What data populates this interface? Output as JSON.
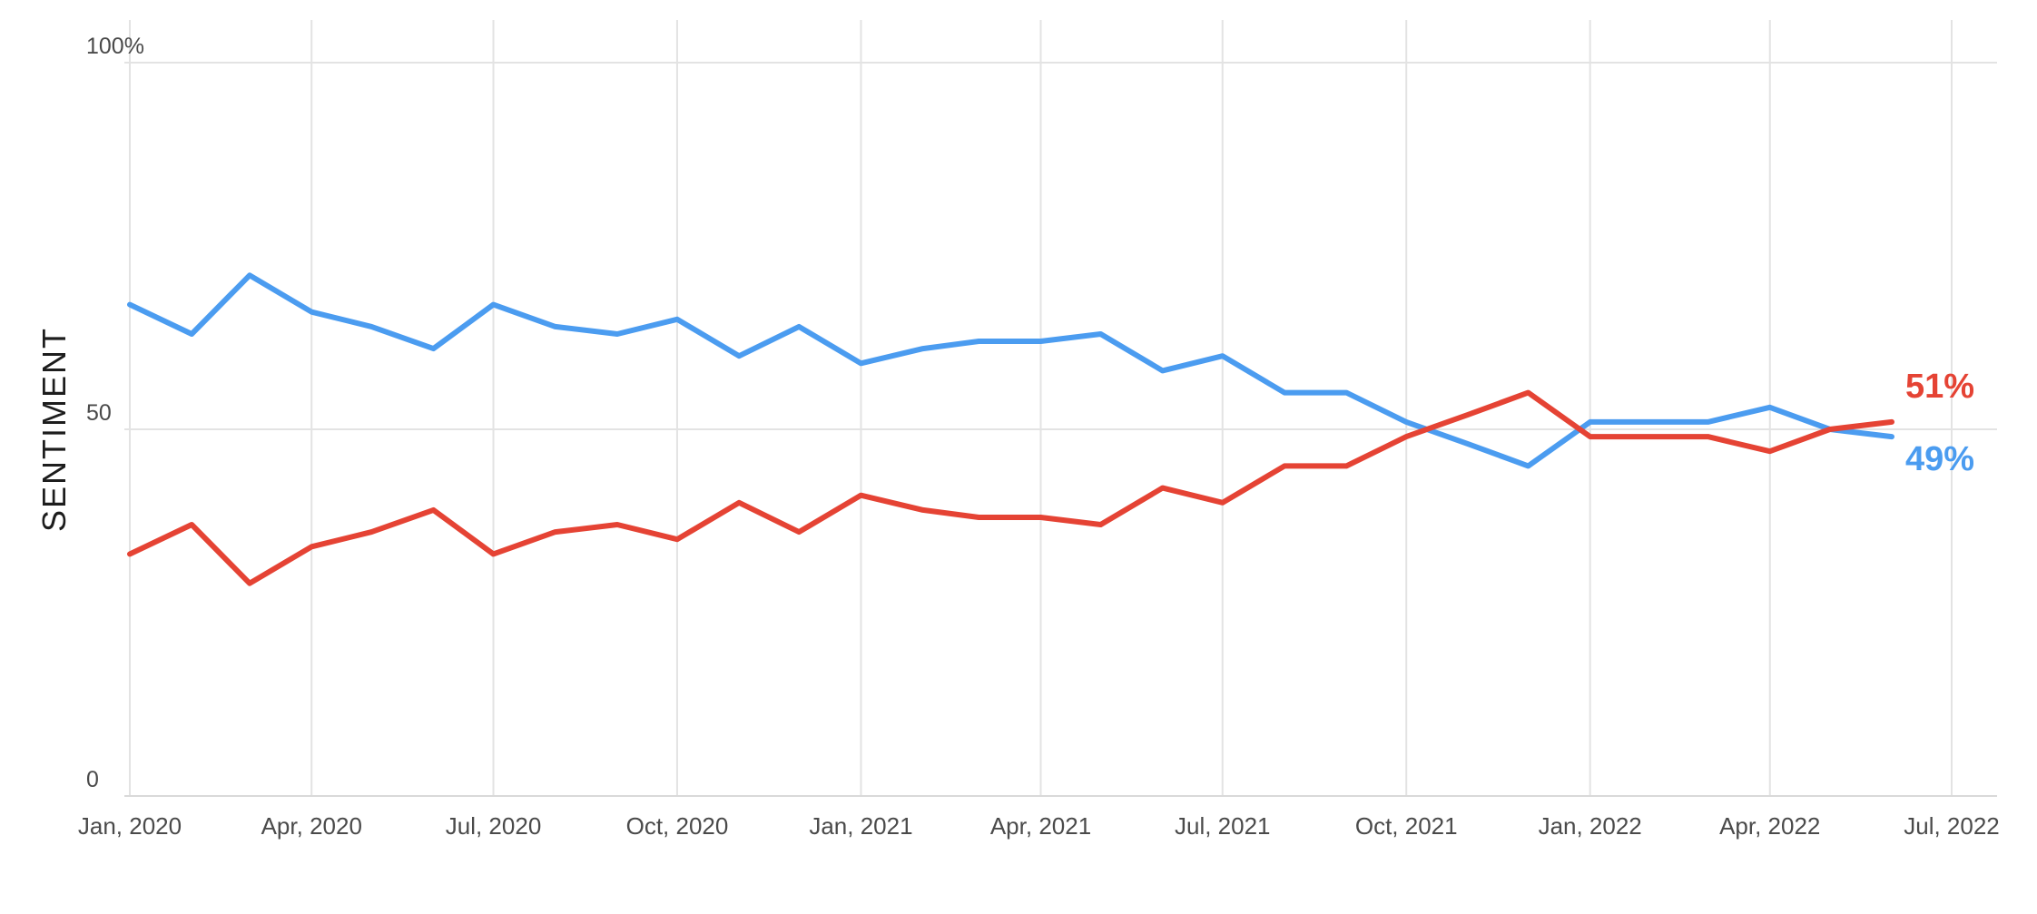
{
  "chart_data": {
    "type": "line",
    "title": "",
    "xlabel": "",
    "ylabel": "SENTIMENT",
    "ylim": [
      0,
      100
    ],
    "xlim": [
      "2020-01-01",
      "2022-07-01"
    ],
    "grid": true,
    "y_ticks": [
      {
        "value": 0,
        "label": "0"
      },
      {
        "value": 50,
        "label": "50"
      },
      {
        "value": 100,
        "label": "100%"
      }
    ],
    "x_ticks": [
      {
        "date": "2020-01-01",
        "label": "Jan, 2020"
      },
      {
        "date": "2020-04-01",
        "label": "Apr, 2020"
      },
      {
        "date": "2020-07-01",
        "label": "Jul, 2020"
      },
      {
        "date": "2020-10-01",
        "label": "Oct, 2020"
      },
      {
        "date": "2021-01-01",
        "label": "Jan, 2021"
      },
      {
        "date": "2021-04-01",
        "label": "Apr, 2021"
      },
      {
        "date": "2021-07-01",
        "label": "Jul, 2021"
      },
      {
        "date": "2021-10-01",
        "label": "Oct, 2021"
      },
      {
        "date": "2022-01-01",
        "label": "Jan, 2022"
      },
      {
        "date": "2022-04-01",
        "label": "Apr, 2022"
      },
      {
        "date": "2022-07-01",
        "label": "Jul, 2022"
      }
    ],
    "x": [
      "2020-01-01",
      "2020-02-01",
      "2020-03-01",
      "2020-04-01",
      "2020-05-01",
      "2020-06-01",
      "2020-07-01",
      "2020-08-01",
      "2020-09-01",
      "2020-10-01",
      "2020-11-01",
      "2020-12-01",
      "2021-01-01",
      "2021-02-01",
      "2021-03-01",
      "2021-04-01",
      "2021-05-01",
      "2021-06-01",
      "2021-07-01",
      "2021-08-01",
      "2021-09-01",
      "2021-10-01",
      "2021-11-01",
      "2021-12-01",
      "2022-01-01",
      "2022-02-01",
      "2022-03-01",
      "2022-04-01",
      "2022-05-01",
      "2022-06-01"
    ],
    "series": [
      {
        "color": "#4b9cf0",
        "end_label": "49%",
        "values": [
          67,
          63,
          71,
          66,
          64,
          61,
          67,
          64,
          63,
          65,
          60,
          64,
          59,
          61,
          62,
          62,
          63,
          58,
          60,
          55,
          55,
          51,
          48,
          45,
          51,
          51,
          51,
          53,
          50,
          49
        ]
      },
      {
        "color": "#e54334",
        "end_label": "51%",
        "values": [
          33,
          37,
          29,
          34,
          36,
          39,
          33,
          36,
          37,
          35,
          40,
          36,
          41,
          39,
          38,
          38,
          37,
          42,
          40,
          45,
          45,
          49,
          52,
          55,
          49,
          49,
          49,
          47,
          50,
          51
        ]
      }
    ]
  }
}
